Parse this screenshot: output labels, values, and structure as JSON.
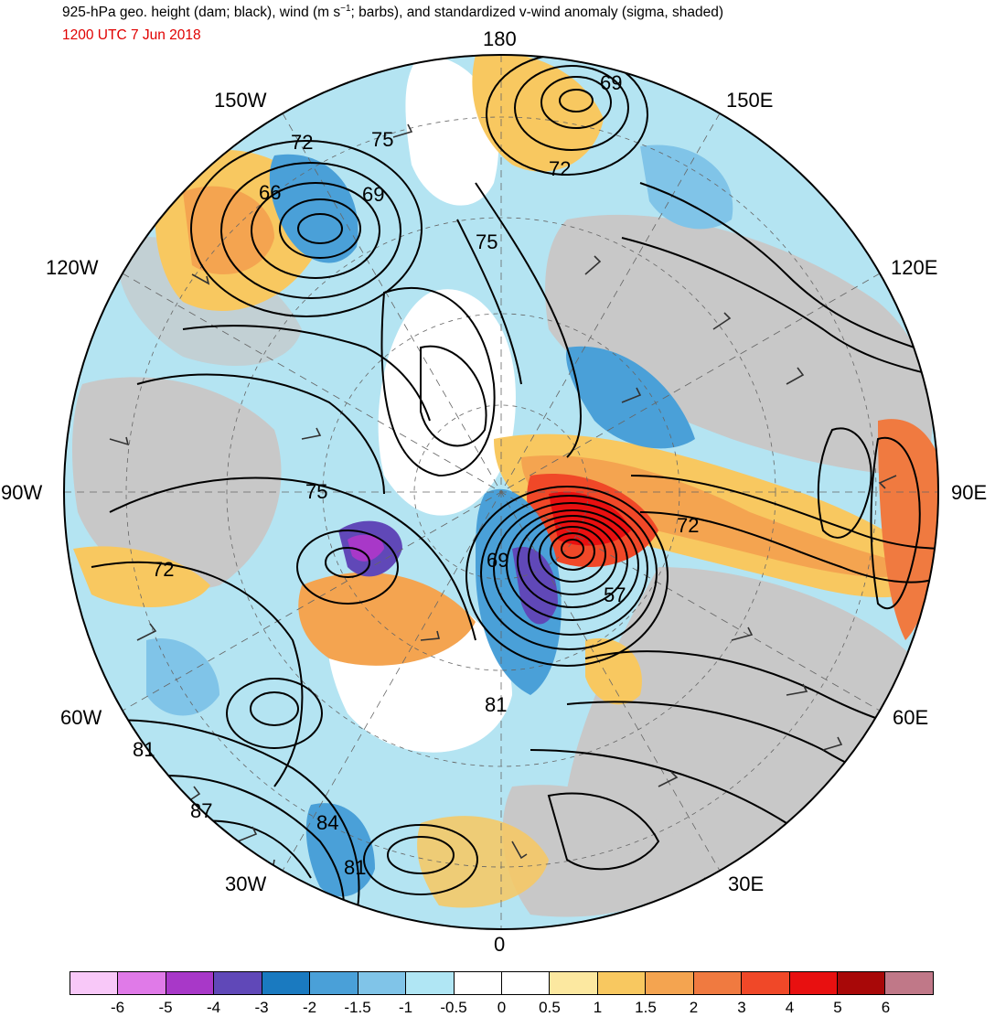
{
  "header": {
    "title_main": "925-hPa geo. height (dam; black), wind (m s",
    "title_sup": "−1",
    "title_rest": "; barbs), and standardized v-wind anomaly (sigma, shaded)",
    "datetime": "1200 UTC 7 Jun 2018"
  },
  "longitude_labels": {
    "lon_180": "180",
    "lon_150w": "150W",
    "lon_150e": "150E",
    "lon_120w": "120W",
    "lon_120e": "120E",
    "lon_90w": "90W",
    "lon_90e": "90E",
    "lon_60w": "60W",
    "lon_60e": "60E",
    "lon_30w": "30W",
    "lon_30e": "30E",
    "lon_0": "0"
  },
  "contour_labels": [
    {
      "text": "69"
    },
    {
      "text": "72"
    },
    {
      "text": "66"
    },
    {
      "text": "75"
    },
    {
      "text": "69"
    },
    {
      "text": "72"
    },
    {
      "text": "75"
    },
    {
      "text": "75"
    },
    {
      "text": "72"
    },
    {
      "text": "69"
    },
    {
      "text": "72"
    },
    {
      "text": "57"
    },
    {
      "text": "81"
    },
    {
      "text": "81"
    },
    {
      "text": "87"
    },
    {
      "text": "84"
    },
    {
      "text": "81"
    }
  ],
  "colorbar": {
    "colors": [
      "#f8c8f8",
      "#e07ae8",
      "#a838c8",
      "#6048b8",
      "#1a7ac0",
      "#4aa0d8",
      "#80c4e8",
      "#b0e6f4",
      "#ffffff",
      "#ffffff",
      "#fce8a0",
      "#f8c860",
      "#f4a450",
      "#f07a40",
      "#f04828",
      "#e81010",
      "#a80808",
      "#c07888"
    ],
    "ticks": [
      "-6",
      "-5",
      "-4",
      "-3",
      "-2",
      "-1.5",
      "-1",
      "-0.5",
      "0",
      "0.5",
      "1",
      "1.5",
      "2",
      "3",
      "4",
      "5",
      "6"
    ]
  },
  "palette": {
    "land_gray": "#c8c8c8",
    "pos_anom": "#f4a450",
    "neg_anom": "#80c4e8",
    "contour": "#000000"
  }
}
